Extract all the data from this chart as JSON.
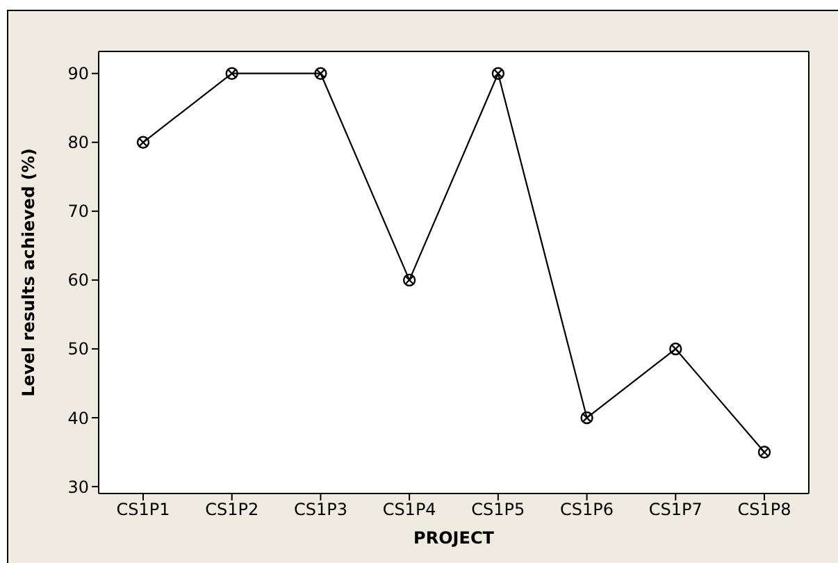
{
  "chart_data": {
    "type": "line",
    "xlabel": "PROJECT",
    "ylabel": "Level results achieved (%)",
    "categories": [
      "CS1P1",
      "CS1P2",
      "CS1P3",
      "CS1P4",
      "CS1P5",
      "CS1P6",
      "CS1P7",
      "CS1P8"
    ],
    "series": [
      {
        "color": "#000000",
        "values": [
          80,
          90,
          90,
          60,
          90,
          40,
          50,
          35
        ]
      }
    ],
    "ylim": [
      29,
      93.2
    ],
    "yticks": [
      30,
      40,
      50,
      60,
      70,
      80,
      90
    ],
    "marker": "circle",
    "line_style": "solid",
    "grid": false
  }
}
